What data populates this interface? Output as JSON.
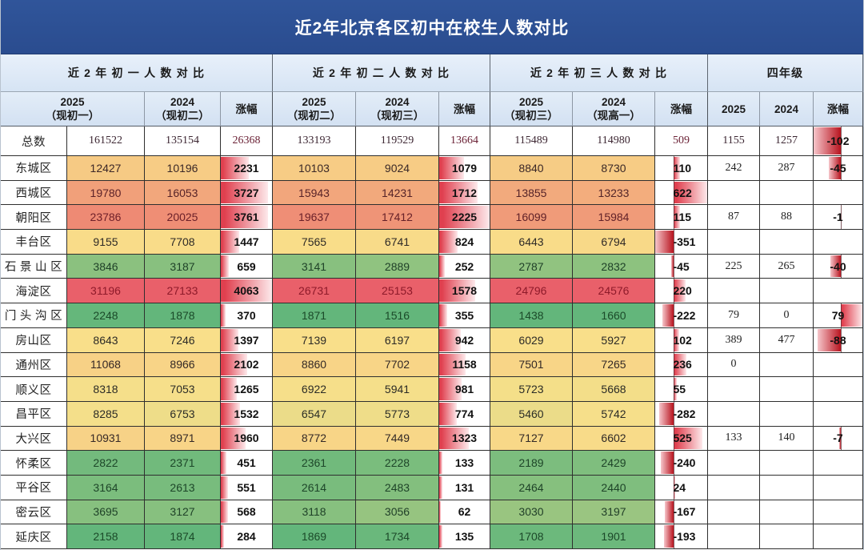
{
  "colors": {
    "title_bg": "#2c4f93",
    "title_text": "#ffffff",
    "header_bg": "#dce8f5",
    "grid_line": "#2f2f2f",
    "heat_min": "#63b67b",
    "heat_mid": "#f9e08a",
    "heat_max": "#e9606a",
    "heat_text_min": "#1b4a29",
    "heat_text_mid": "#2b2a26",
    "heat_text_max": "#8e1a2a",
    "bar_positive": "#e0404f",
    "bar_positive_end": "#fde9eb",
    "bar_negative": "#b8141f",
    "bar_negative_end": "#f6c6cb"
  },
  "chart_data": {
    "type": "table",
    "title": "近2年北京各区初中在校生人数对比",
    "groups": [
      {
        "label": "近 2 年 初 一 人 数 对 比",
        "columns": [
          {
            "line1": "2025",
            "line2": "（现初一）"
          },
          {
            "line1": "2024",
            "line2": "（现初二）"
          },
          {
            "line1": "涨幅",
            "line2": ""
          }
        ]
      },
      {
        "label": "近 2 年 初 二 人 数 对 比",
        "columns": [
          {
            "line1": "2025",
            "line2": "（现初二）"
          },
          {
            "line1": "2024",
            "line2": "（现初三）"
          },
          {
            "line1": "涨幅",
            "line2": ""
          }
        ]
      },
      {
        "label": "近 2 年 初 三 人 数 对 比",
        "columns": [
          {
            "line1": "2025",
            "line2": "（现初三）"
          },
          {
            "line1": "2024",
            "line2": "（现高一）"
          },
          {
            "line1": "涨幅",
            "line2": ""
          }
        ]
      },
      {
        "label": "四年级",
        "columns": [
          {
            "line1": "2025",
            "line2": ""
          },
          {
            "line1": "2024",
            "line2": ""
          },
          {
            "line1": "涨幅",
            "line2": ""
          }
        ]
      }
    ],
    "total": {
      "label": "总数",
      "values": [
        [
          161522,
          135154,
          26368
        ],
        [
          133193,
          119529,
          13664
        ],
        [
          115489,
          114980,
          509
        ],
        [
          1155,
          1257,
          -102
        ]
      ]
    },
    "rows": [
      {
        "district": "东城区",
        "values": [
          [
            12427,
            10196,
            2231
          ],
          [
            10103,
            9024,
            1079
          ],
          [
            8840,
            8730,
            110
          ],
          [
            242,
            287,
            -45
          ]
        ]
      },
      {
        "district": "西城区",
        "values": [
          [
            19780,
            16053,
            3727
          ],
          [
            15943,
            14231,
            1712
          ],
          [
            13855,
            13233,
            622
          ],
          [
            null,
            null,
            null
          ]
        ]
      },
      {
        "district": "朝阳区",
        "values": [
          [
            23786,
            20025,
            3761
          ],
          [
            19637,
            17412,
            2225
          ],
          [
            16099,
            15984,
            115
          ],
          [
            87,
            88,
            -1
          ]
        ]
      },
      {
        "district": "丰台区",
        "values": [
          [
            9155,
            7708,
            1447
          ],
          [
            7565,
            6741,
            824
          ],
          [
            6443,
            6794,
            -351
          ],
          [
            null,
            null,
            null
          ]
        ]
      },
      {
        "district": "石 景 山 区",
        "values": [
          [
            3846,
            3187,
            659
          ],
          [
            3141,
            2889,
            252
          ],
          [
            2787,
            2832,
            -45
          ],
          [
            225,
            265,
            -40
          ]
        ]
      },
      {
        "district": "海淀区",
        "values": [
          [
            31196,
            27133,
            4063
          ],
          [
            26731,
            25153,
            1578
          ],
          [
            24796,
            24576,
            220
          ],
          [
            null,
            null,
            null
          ]
        ]
      },
      {
        "district": "门 头 沟 区",
        "values": [
          [
            2248,
            1878,
            370
          ],
          [
            1871,
            1516,
            355
          ],
          [
            1438,
            1660,
            -222
          ],
          [
            79,
            0,
            79
          ]
        ]
      },
      {
        "district": "房山区",
        "values": [
          [
            8643,
            7246,
            1397
          ],
          [
            7139,
            6197,
            942
          ],
          [
            6029,
            5927,
            102
          ],
          [
            389,
            477,
            -88
          ]
        ]
      },
      {
        "district": "通州区",
        "values": [
          [
            11068,
            8966,
            2102
          ],
          [
            8860,
            7702,
            1158
          ],
          [
            7501,
            7265,
            236
          ],
          [
            0,
            null,
            null
          ]
        ]
      },
      {
        "district": "顺义区",
        "values": [
          [
            8318,
            7053,
            1265
          ],
          [
            6922,
            5941,
            981
          ],
          [
            5723,
            5668,
            55
          ],
          [
            null,
            null,
            null
          ]
        ]
      },
      {
        "district": "昌平区",
        "values": [
          [
            8285,
            6753,
            1532
          ],
          [
            6547,
            5773,
            774
          ],
          [
            5460,
            5742,
            -282
          ],
          [
            null,
            null,
            null
          ]
        ]
      },
      {
        "district": "大兴区",
        "values": [
          [
            10931,
            8971,
            1960
          ],
          [
            8772,
            7449,
            1323
          ],
          [
            7127,
            6602,
            525
          ],
          [
            133,
            140,
            -7
          ]
        ]
      },
      {
        "district": "怀柔区",
        "values": [
          [
            2822,
            2371,
            451
          ],
          [
            2361,
            2228,
            133
          ],
          [
            2189,
            2429,
            -240
          ],
          [
            null,
            null,
            null
          ]
        ]
      },
      {
        "district": "平谷区",
        "values": [
          [
            3164,
            2613,
            551
          ],
          [
            2614,
            2483,
            131
          ],
          [
            2464,
            2440,
            24
          ],
          [
            null,
            null,
            null
          ]
        ]
      },
      {
        "district": "密云区",
        "values": [
          [
            3695,
            3127,
            568
          ],
          [
            3118,
            3056,
            62
          ],
          [
            3030,
            3197,
            -167
          ],
          [
            null,
            null,
            null
          ]
        ]
      },
      {
        "district": "延庆区",
        "values": [
          [
            2158,
            1874,
            284
          ],
          [
            1869,
            1734,
            135
          ],
          [
            1708,
            1901,
            -193
          ],
          [
            null,
            null,
            null
          ]
        ]
      }
    ]
  }
}
